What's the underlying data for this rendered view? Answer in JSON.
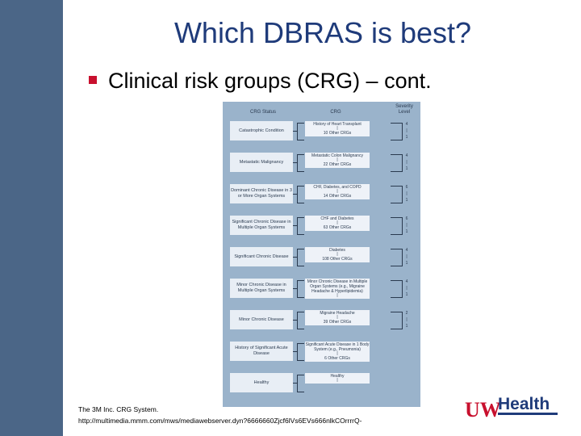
{
  "title": "Which DBRAS is best?",
  "bullet": "Clinical risk groups (CRG) – cont.",
  "figure": {
    "headers": [
      "CRG Status",
      "CRG",
      "Severity Level"
    ],
    "groups": [
      {
        "status": "Catastrophic Condition",
        "crg_top": "History of Heart Transplant",
        "crg_bottom": "10 Other CRGs",
        "sev_top": "4",
        "sev_bottom": "1"
      },
      {
        "status": "Metastatic Malignancy",
        "crg_top": "Metastatic Colon Malignancy",
        "crg_bottom": "22 Other CRGs",
        "sev_top": "4",
        "sev_bottom": "1"
      },
      {
        "status": "Dominant Chronic Disease in 3 or More Organ Systems",
        "crg_top": "CHF, Diabetes, and COPD",
        "crg_bottom": "14 Other CRGs",
        "sev_top": "6",
        "sev_bottom": "1"
      },
      {
        "status": "Significant Chronic Disease in Multiple Organ Systems",
        "crg_top": "CHF and Diabetes",
        "crg_bottom": "63 Other CRGs",
        "sev_top": "6",
        "sev_bottom": "1"
      },
      {
        "status": "Significant Chronic Disease",
        "crg_top": "Diabetes",
        "crg_bottom": "108 Other CRGs",
        "sev_top": "4",
        "sev_bottom": "1"
      },
      {
        "status": "Minor Chronic Disease in Multiple Organ Systems",
        "crg_top": "Minor Chronic Disease in Multiple Organ Systems (e.g., Migraine Headache & Hyperlipidemia)",
        "crg_bottom": "",
        "sev_top": "4",
        "sev_bottom": "1"
      },
      {
        "status": "Minor Chronic Disease",
        "crg_top": "Migraine Headache",
        "crg_bottom": "39 Other CRGs",
        "sev_top": "2",
        "sev_bottom": "1"
      },
      {
        "status": "History of Significant Acute Disease",
        "crg_top": "Significant Acute Disease in 1 Body System (e.g., Pneumonia)",
        "crg_bottom": "6 Other CRGs",
        "sev_top": "",
        "sev_bottom": ""
      },
      {
        "status": "Healthy",
        "crg_top": "Healthy",
        "crg_bottom": "",
        "sev_top": "",
        "sev_bottom": ""
      }
    ]
  },
  "source": {
    "line1": "The 3M Inc. CRG System.",
    "line2": "http://multimedia.mmm.com/mws/mediawebserver.dyn?6666660Zjcf6lVs6EVs666nlkCOrrrrQ-"
  },
  "logo": {
    "part1": "UW",
    "part2": "Health",
    "color_uw": "#c8102e",
    "color_health": "#1f3b7a"
  },
  "colors": {
    "title": "#1f3b7a",
    "left_bar": "#4b6687",
    "figure_bg": "#9ab3cb",
    "bullet": "#c8102e"
  }
}
